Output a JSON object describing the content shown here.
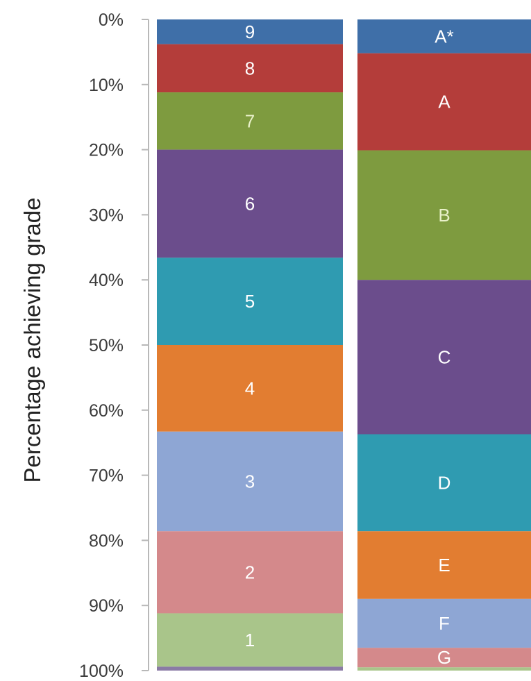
{
  "chart_data": {
    "type": "bar",
    "stacked": true,
    "orientation": "vertical",
    "ylabel": "Percentage achieving grade",
    "y_axis_inverted": true,
    "ylim": [
      0,
      100
    ],
    "y_ticks": [
      "0%",
      "10%",
      "20%",
      "30%",
      "40%",
      "50%",
      "60%",
      "70%",
      "80%",
      "90%",
      "100%"
    ],
    "grid": false,
    "legend": "none",
    "columns": [
      {
        "segments": [
          {
            "label": "9",
            "start": 0,
            "end": 3.8,
            "color": "#3f6fa8",
            "text_color": "#ffffff"
          },
          {
            "label": "8",
            "start": 3.8,
            "end": 11.2,
            "color": "#b43d3a",
            "text_color": "#ffffff"
          },
          {
            "label": "7",
            "start": 11.2,
            "end": 20.0,
            "color": "#7e9b3f",
            "text_color": "#e9f1c9"
          },
          {
            "label": "6",
            "start": 20.0,
            "end": 36.6,
            "color": "#6b4d8c",
            "text_color": "#ffffff"
          },
          {
            "label": "5",
            "start": 36.6,
            "end": 50.0,
            "color": "#2f9bb1",
            "text_color": "#ffffff"
          },
          {
            "label": "4",
            "start": 50.0,
            "end": 63.3,
            "color": "#e27d31",
            "text_color": "#ffffff"
          },
          {
            "label": "3",
            "start": 63.3,
            "end": 78.6,
            "color": "#8ea6d4",
            "text_color": "#ffffff"
          },
          {
            "label": "2",
            "start": 78.6,
            "end": 91.2,
            "color": "#d4898b",
            "text_color": "#ffffff"
          },
          {
            "label": "1",
            "start": 91.2,
            "end": 99.4,
            "color": "#a9c58a",
            "text_color": "#ffffff"
          },
          {
            "label": "",
            "start": 99.4,
            "end": 100.0,
            "color": "#8a7ba5",
            "text_color": "#ffffff"
          }
        ]
      },
      {
        "segments": [
          {
            "label": "A*",
            "start": 0,
            "end": 5.2,
            "color": "#3f6fa8",
            "text_color": "#ffffff"
          },
          {
            "label": "A",
            "start": 5.2,
            "end": 20.1,
            "color": "#b43d3a",
            "text_color": "#ffffff"
          },
          {
            "label": "B",
            "start": 20.1,
            "end": 40.0,
            "color": "#7e9b3f",
            "text_color": "#e9f1c9"
          },
          {
            "label": "C",
            "start": 40.0,
            "end": 63.7,
            "color": "#6b4d8c",
            "text_color": "#ffffff"
          },
          {
            "label": "D",
            "start": 63.7,
            "end": 78.6,
            "color": "#2f9bb1",
            "text_color": "#ffffff"
          },
          {
            "label": "E",
            "start": 78.6,
            "end": 89.0,
            "color": "#e27d31",
            "text_color": "#ffffff"
          },
          {
            "label": "F",
            "start": 89.0,
            "end": 96.5,
            "color": "#8ea6d4",
            "text_color": "#ffffff"
          },
          {
            "label": "G",
            "start": 96.5,
            "end": 99.5,
            "color": "#d4898b",
            "text_color": "#ffffff"
          },
          {
            "label": "",
            "start": 99.5,
            "end": 100.0,
            "color": "#a9c58a",
            "text_color": "#ffffff"
          }
        ]
      }
    ]
  }
}
